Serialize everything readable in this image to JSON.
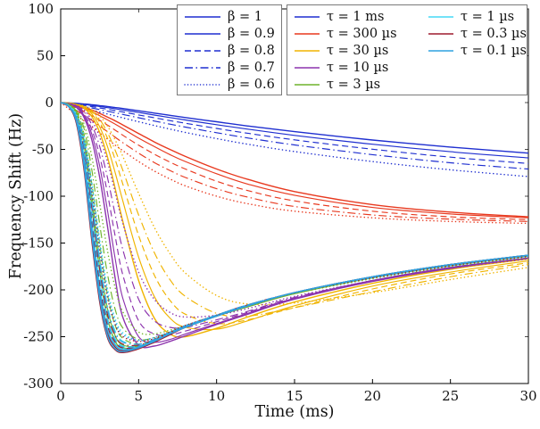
{
  "figure": {
    "background": "#ffffff",
    "axis_color": "#000000"
  },
  "chart_data": {
    "type": "line",
    "title": "",
    "xlabel": "Time (ms)",
    "ylabel": "Frequency Shift (Hz)",
    "xlim": [
      0,
      30
    ],
    "ylim": [
      -300,
      100
    ],
    "xticks": [
      0,
      5,
      10,
      15,
      20,
      25,
      30
    ],
    "yticks": [
      -300,
      -250,
      -200,
      -150,
      -100,
      -50,
      0,
      50,
      100
    ],
    "grid": false,
    "legend_position": "top",
    "legend_beta": {
      "color": "#1f2fd0",
      "entries": [
        {
          "label": "β = 1",
          "style": "solid"
        },
        {
          "label": "β = 0.9",
          "style": "solid"
        },
        {
          "label": "β = 0.8",
          "style": "dashed"
        },
        {
          "label": "β = 0.7",
          "style": "dashdot"
        },
        {
          "label": "β = 0.6",
          "style": "dotted"
        }
      ]
    },
    "beta_styles": [
      "solid",
      "solid",
      "dashed",
      "dashdot",
      "dotted"
    ],
    "legend_tau_columns": [
      [
        0,
        1,
        2,
        3,
        4
      ],
      [
        5,
        6,
        7
      ]
    ],
    "x": [
      0,
      0.5,
      1,
      1.5,
      2,
      2.5,
      3,
      3.5,
      4,
      5,
      6,
      7,
      8,
      10,
      12,
      15,
      20,
      25,
      30
    ],
    "series": [
      {
        "name": "τ = 1 ms",
        "color": "#1f2fd0",
        "curves": [
          [
            0,
            -0.3,
            -0.8,
            -1.5,
            -2.3,
            -3.2,
            -4.2,
            -5.3,
            -6.4,
            -8.8,
            -11.2,
            -13.6,
            -16,
            -20.5,
            -25,
            -31,
            -40,
            -47.5,
            -54
          ],
          [
            0,
            -0.5,
            -1.2,
            -2.1,
            -3.1,
            -4.2,
            -5.4,
            -6.6,
            -7.9,
            -10.6,
            -13.3,
            -16,
            -18.6,
            -23.6,
            -28.4,
            -35,
            -44.5,
            -52.5,
            -59
          ],
          [
            0,
            -0.8,
            -1.8,
            -3,
            -4.3,
            -5.7,
            -7.1,
            -8.6,
            -10.1,
            -13.2,
            -16.2,
            -19.2,
            -22.1,
            -27.6,
            -32.8,
            -39.8,
            -49.8,
            -58.3,
            -65
          ],
          [
            0,
            -1.2,
            -2.6,
            -4.2,
            -5.8,
            -7.5,
            -9.2,
            -10.9,
            -12.7,
            -16.2,
            -19.7,
            -23,
            -26.2,
            -32.2,
            -37.8,
            -45.2,
            -55.6,
            -64.3,
            -71
          ],
          [
            0,
            -1.8,
            -3.8,
            -5.9,
            -8,
            -10.1,
            -12.2,
            -14.3,
            -16.4,
            -20.5,
            -24.5,
            -28.3,
            -31.9,
            -38.5,
            -44.5,
            -52.3,
            -63,
            -71.8,
            -79
          ]
        ]
      },
      {
        "name": "τ = 300 µs",
        "color": "#e8391f",
        "curves": [
          [
            0,
            -1,
            -2.5,
            -5,
            -8,
            -11.5,
            -15.5,
            -19.5,
            -24,
            -33,
            -42,
            -50,
            -57.5,
            -71,
            -82,
            -95,
            -109,
            -117,
            -122
          ],
          [
            0,
            -1.5,
            -3.5,
            -6.5,
            -10,
            -14,
            -18.5,
            -23,
            -28,
            -38,
            -47,
            -55.5,
            -63,
            -76,
            -87,
            -99,
            -112,
            -119,
            -123
          ],
          [
            0,
            -2.5,
            -5.5,
            -9.5,
            -14,
            -19,
            -24,
            -29.5,
            -35,
            -45.5,
            -55,
            -63.5,
            -71,
            -84,
            -94,
            -105,
            -116,
            -122,
            -125
          ],
          [
            0,
            -4,
            -8.5,
            -13.5,
            -19,
            -25,
            -31,
            -37,
            -43,
            -54,
            -64,
            -72.5,
            -80,
            -92,
            -101,
            -111,
            -120,
            -124.5,
            -127
          ],
          [
            0,
            -6.5,
            -13,
            -19.5,
            -26,
            -32.5,
            -39,
            -45.5,
            -51.5,
            -63,
            -73,
            -81.5,
            -89,
            -100,
            -108,
            -116,
            -123,
            -127,
            -129
          ]
        ]
      },
      {
        "name": "τ = 30 µs",
        "color": "#f0b400",
        "curves": [
          [
            0,
            -0.5,
            -2,
            -6,
            -15,
            -32,
            -58,
            -92,
            -128,
            -190,
            -230,
            -247,
            -250,
            -241,
            -229,
            -213,
            -193,
            -178,
            -167
          ],
          [
            0,
            -0.5,
            -2,
            -5,
            -12,
            -26,
            -47,
            -75,
            -106,
            -165,
            -207,
            -230,
            -240,
            -242,
            -233,
            -217,
            -196,
            -181,
            -169
          ],
          [
            0,
            -0.5,
            -2,
            -4.5,
            -10,
            -21,
            -38,
            -61,
            -88,
            -142,
            -184,
            -211,
            -226,
            -236,
            -232,
            -219,
            -199,
            -183,
            -171
          ],
          [
            0,
            -0.5,
            -2,
            -4,
            -9,
            -18,
            -32,
            -51,
            -73,
            -120,
            -160,
            -189,
            -207,
            -225,
            -228,
            -219,
            -202,
            -186,
            -173
          ],
          [
            0,
            -0.5,
            -2,
            -3.5,
            -7.5,
            -14,
            -25,
            -40,
            -58,
            -97,
            -133,
            -161,
            -182,
            -206,
            -215,
            -214,
            -203,
            -189,
            -176
          ]
        ]
      },
      {
        "name": "τ = 10 µs",
        "color": "#8c33ad",
        "curves": [
          [
            0,
            -1,
            -5,
            -16,
            -40,
            -80,
            -132,
            -188,
            -230,
            -259,
            -260,
            -255,
            -249,
            -237,
            -226,
            -210,
            -191,
            -177,
            -166
          ],
          [
            0,
            -1,
            -4.5,
            -14,
            -34,
            -68,
            -115,
            -167,
            -210,
            -250,
            -256,
            -253,
            -247,
            -236,
            -225,
            -209,
            -190,
            -176,
            -166
          ],
          [
            0,
            -1,
            -4,
            -12,
            -29,
            -57,
            -97,
            -143,
            -185,
            -233,
            -247,
            -248,
            -244,
            -234,
            -224,
            -209,
            -190,
            -176,
            -166
          ],
          [
            0,
            -1,
            -3.5,
            -10,
            -24,
            -47,
            -80,
            -120,
            -158,
            -210,
            -233,
            -240,
            -240,
            -232,
            -223,
            -208,
            -190,
            -176,
            -166
          ],
          [
            0,
            -1,
            -3,
            -8,
            -19,
            -37,
            -63,
            -96,
            -130,
            -181,
            -210,
            -224,
            -229,
            -227,
            -220,
            -207,
            -190,
            -177,
            -167
          ]
        ]
      },
      {
        "name": "τ = 3 µs",
        "color": "#6fb32b",
        "curves": [
          [
            0,
            -2,
            -12,
            -45,
            -110,
            -180,
            -230,
            -255,
            -262,
            -261,
            -254,
            -247,
            -240,
            -228,
            -218,
            -204,
            -187,
            -174,
            -164
          ],
          [
            0,
            -2,
            -11,
            -40,
            -100,
            -168,
            -220,
            -249,
            -259,
            -260,
            -254,
            -247,
            -240,
            -228,
            -218,
            -204,
            -187,
            -174,
            -164
          ],
          [
            0,
            -2,
            -10,
            -34,
            -87,
            -151,
            -205,
            -238,
            -252,
            -258,
            -253,
            -246,
            -239,
            -228,
            -217,
            -204,
            -187,
            -174,
            -164
          ],
          [
            0,
            -2,
            -9,
            -28,
            -72,
            -130,
            -183,
            -221,
            -241,
            -253,
            -251,
            -245,
            -239,
            -227,
            -217,
            -204,
            -187,
            -174,
            -164
          ],
          [
            0,
            -2,
            -8,
            -23,
            -58,
            -108,
            -158,
            -198,
            -224,
            -245,
            -247,
            -243,
            -238,
            -227,
            -217,
            -204,
            -188,
            -175,
            -165
          ]
        ]
      },
      {
        "name": "τ = 1 µs",
        "color": "#45d8f5",
        "curves": [
          [
            0,
            -3,
            -18,
            -62,
            -135,
            -203,
            -245,
            -261,
            -265,
            -262,
            -255,
            -247,
            -240,
            -228,
            -217,
            -203,
            -186,
            -173,
            -163
          ],
          [
            0,
            -3,
            -17,
            -57,
            -127,
            -195,
            -239,
            -258,
            -263,
            -261,
            -254,
            -247,
            -240,
            -228,
            -217,
            -203,
            -186,
            -173,
            -163
          ],
          [
            0,
            -3,
            -15,
            -50,
            -115,
            -182,
            -230,
            -252,
            -260,
            -260,
            -254,
            -246,
            -239,
            -227,
            -216,
            -203,
            -186,
            -173,
            -163
          ],
          [
            0,
            -3,
            -14,
            -43,
            -101,
            -166,
            -217,
            -244,
            -255,
            -258,
            -253,
            -246,
            -239,
            -227,
            -216,
            -203,
            -186,
            -173,
            -163
          ],
          [
            0,
            -3,
            -12,
            -36,
            -85,
            -146,
            -198,
            -231,
            -246,
            -254,
            -251,
            -245,
            -238,
            -227,
            -217,
            -203,
            -187,
            -174,
            -164
          ]
        ]
      },
      {
        "name": "τ = 0.3 µs",
        "color": "#9e1b2e",
        "curves": [
          [
            0,
            -4,
            -22,
            -72,
            -148,
            -213,
            -251,
            -264,
            -267,
            -263,
            -256,
            -248,
            -240,
            -228,
            -217,
            -203,
            -186,
            -173,
            -163
          ],
          [
            0,
            -4,
            -21,
            -67,
            -140,
            -206,
            -246,
            -261,
            -265,
            -262,
            -255,
            -247,
            -240,
            -228,
            -217,
            -203,
            -186,
            -173,
            -163
          ],
          [
            0,
            -4,
            -19,
            -59,
            -128,
            -194,
            -238,
            -256,
            -262,
            -261,
            -254,
            -247,
            -239,
            -227,
            -216,
            -203,
            -186,
            -173,
            -163
          ],
          [
            0,
            -4,
            -17,
            -51,
            -113,
            -178,
            -226,
            -249,
            -258,
            -259,
            -253,
            -246,
            -239,
            -227,
            -216,
            -203,
            -186,
            -173,
            -163
          ],
          [
            0,
            -4,
            -15,
            -43,
            -96,
            -158,
            -208,
            -237,
            -250,
            -255,
            -252,
            -245,
            -238,
            -227,
            -217,
            -203,
            -187,
            -174,
            -164
          ]
        ]
      },
      {
        "name": "τ = 0.1 µs",
        "color": "#2fa2e0",
        "curves": [
          [
            0,
            -4,
            -20,
            -68,
            -143,
            -209,
            -249,
            -263,
            -266,
            -262,
            -255,
            -247,
            -240,
            -228,
            -217,
            -203,
            -186,
            -173,
            -163
          ],
          [
            0,
            -4,
            -19,
            -63,
            -135,
            -201,
            -243,
            -259,
            -264,
            -261,
            -254,
            -247,
            -240,
            -228,
            -217,
            -203,
            -186,
            -173,
            -163
          ],
          [
            0,
            -4,
            -18,
            -55,
            -122,
            -188,
            -234,
            -254,
            -261,
            -260,
            -254,
            -246,
            -239,
            -227,
            -216,
            -203,
            -186,
            -173,
            -163
          ],
          [
            0,
            -4,
            -16,
            -47,
            -107,
            -172,
            -221,
            -246,
            -256,
            -258,
            -253,
            -246,
            -239,
            -227,
            -216,
            -203,
            -186,
            -173,
            -163
          ],
          [
            0,
            -4,
            -14,
            -40,
            -90,
            -152,
            -203,
            -234,
            -248,
            -254,
            -251,
            -245,
            -238,
            -227,
            -217,
            -203,
            -187,
            -174,
            -164
          ]
        ]
      }
    ]
  }
}
